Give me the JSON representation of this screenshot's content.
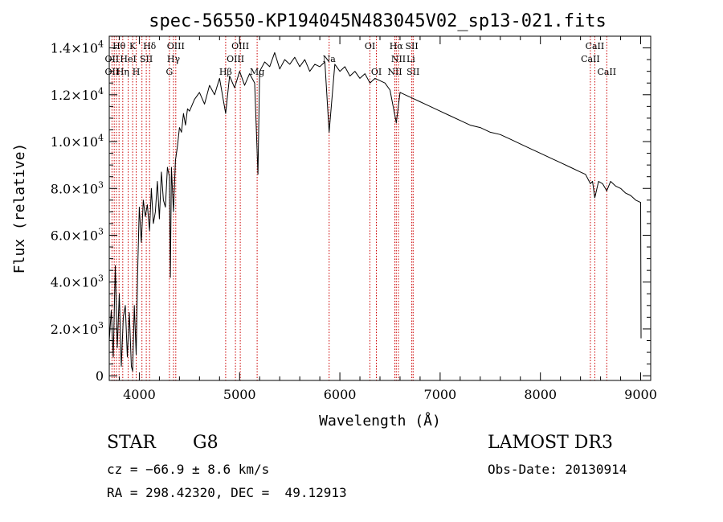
{
  "chart_data": {
    "type": "line",
    "title": "spec-56550-KP194045N483045V02_sp13-021.fits",
    "xlabel": "Wavelength (Å)",
    "ylabel": "Flux (relative)",
    "xlim": [
      3700,
      9100
    ],
    "ylim": [
      -200,
      14500
    ],
    "xticks": [
      4000,
      5000,
      6000,
      7000,
      8000,
      9000
    ],
    "xtick_labels": [
      "4000",
      "5000",
      "6000",
      "7000",
      "8000",
      "9000"
    ],
    "yticks": [
      0,
      2000,
      4000,
      6000,
      8000,
      10000,
      12000,
      14000
    ],
    "ytick_labels": [
      {
        "mant": "0",
        "exp": ""
      },
      {
        "mant": "2.0×10",
        "exp": "3"
      },
      {
        "mant": "4.0×10",
        "exp": "3"
      },
      {
        "mant": "6.0×10",
        "exp": "3"
      },
      {
        "mant": "8.0×10",
        "exp": "3"
      },
      {
        "mant": "1.0×10",
        "exp": "4"
      },
      {
        "mant": "1.2×10",
        "exp": "4"
      },
      {
        "mant": "1.4×10",
        "exp": "4"
      }
    ],
    "series": [
      {
        "name": "flux",
        "x": [
          3700,
          3720,
          3740,
          3760,
          3780,
          3800,
          3820,
          3840,
          3860,
          3880,
          3900,
          3920,
          3933,
          3950,
          3968,
          3985,
          4000,
          4020,
          4040,
          4060,
          4080,
          4102,
          4120,
          4140,
          4160,
          4180,
          4200,
          4220,
          4240,
          4260,
          4280,
          4300,
          4310,
          4320,
          4340,
          4360,
          4380,
          4400,
          4420,
          4440,
          4460,
          4480,
          4500,
          4550,
          4600,
          4650,
          4700,
          4750,
          4800,
          4861,
          4900,
          4950,
          5000,
          5050,
          5100,
          5150,
          5183,
          5200,
          5250,
          5300,
          5350,
          5400,
          5450,
          5500,
          5550,
          5600,
          5650,
          5700,
          5750,
          5800,
          5850,
          5893,
          5950,
          6000,
          6050,
          6100,
          6150,
          6200,
          6250,
          6300,
          6350,
          6400,
          6450,
          6500,
          6563,
          6600,
          6650,
          6700,
          6750,
          6800,
          6900,
          7000,
          7100,
          7200,
          7300,
          7400,
          7500,
          7600,
          7700,
          7800,
          7900,
          8000,
          8100,
          8200,
          8300,
          8400,
          8450,
          8498,
          8520,
          8542,
          8580,
          8620,
          8662,
          8700,
          8750,
          8800,
          8850,
          8900,
          8950,
          9000,
          9004
        ],
        "y": [
          1500,
          2800,
          800,
          4700,
          1200,
          3500,
          400,
          2500,
          3000,
          800,
          2700,
          400,
          200,
          3000,
          900,
          4800,
          7200,
          5700,
          7500,
          6800,
          7300,
          6200,
          8000,
          6500,
          7000,
          8300,
          6700,
          8700,
          7500,
          7200,
          8900,
          8500,
          4200,
          8900,
          7000,
          9200,
          9800,
          10600,
          10400,
          11200,
          10700,
          11400,
          11300,
          11800,
          12100,
          11600,
          12400,
          12000,
          12700,
          11200,
          12800,
          12300,
          13000,
          12400,
          12900,
          12500,
          8600,
          13000,
          13400,
          13200,
          13800,
          13100,
          13500,
          13300,
          13600,
          13200,
          13500,
          13000,
          13300,
          13200,
          13400,
          10400,
          13300,
          13000,
          13200,
          12800,
          13000,
          12700,
          12900,
          12500,
          12700,
          12600,
          12500,
          12200,
          10800,
          12100,
          12000,
          11900,
          11800,
          11700,
          11500,
          11300,
          11100,
          10900,
          10700,
          10600,
          10400,
          10300,
          10100,
          9900,
          9700,
          9500,
          9300,
          9100,
          8900,
          8700,
          8600,
          8200,
          8300,
          7600,
          8300,
          8200,
          7900,
          8300,
          8100,
          8000,
          7800,
          7700,
          7500,
          7400,
          1600
        ]
      }
    ],
    "line_wavelengths": [
      3727,
      3750,
      3771,
      3798,
      3835,
      3889,
      3933,
      3968,
      4026,
      4069,
      4102,
      4300,
      4341,
      4363,
      4861,
      4959,
      5007,
      5175,
      5893,
      6300,
      6364,
      6548,
      6563,
      6584,
      6717,
      6731,
      8498,
      8542,
      8662
    ],
    "line_labels": [
      {
        "text": "Hθ",
        "x": 3798,
        "row": 0
      },
      {
        "text": "K",
        "x": 3933,
        "row": 0
      },
      {
        "text": "Hδ",
        "x": 4102,
        "row": 0
      },
      {
        "text": "OIII",
        "x": 4363,
        "row": 0
      },
      {
        "text": "OIII",
        "x": 5007,
        "row": 0
      },
      {
        "text": "OI",
        "x": 6300,
        "row": 0
      },
      {
        "text": "Hα",
        "x": 6563,
        "row": 0
      },
      {
        "text": "SII",
        "x": 6717,
        "row": 0
      },
      {
        "text": "CaII",
        "x": 8542,
        "row": 0
      },
      {
        "text": "OII",
        "x": 3727,
        "row": 1
      },
      {
        "text": "HeI",
        "x": 3889,
        "row": 1
      },
      {
        "text": "SII",
        "x": 4069,
        "row": 1
      },
      {
        "text": "Hγ",
        "x": 4341,
        "row": 1
      },
      {
        "text": "OIII",
        "x": 4959,
        "row": 1
      },
      {
        "text": "Na",
        "x": 5893,
        "row": 1
      },
      {
        "text": "NII",
        "x": 6584,
        "row": 1
      },
      {
        "text": "Li",
        "x": 6708,
        "row": 1
      },
      {
        "text": "CaII",
        "x": 8498,
        "row": 1
      },
      {
        "text": "OII",
        "x": 3727,
        "row": 2
      },
      {
        "text": "Hη",
        "x": 3835,
        "row": 2
      },
      {
        "text": "H",
        "x": 3968,
        "row": 2
      },
      {
        "text": "G",
        "x": 4300,
        "row": 2
      },
      {
        "text": "Hβ",
        "x": 4861,
        "row": 2
      },
      {
        "text": "Mg",
        "x": 5175,
        "row": 2
      },
      {
        "text": "OI",
        "x": 6364,
        "row": 2
      },
      {
        "text": "NII",
        "x": 6548,
        "row": 2
      },
      {
        "text": "SII",
        "x": 6731,
        "row": 2
      },
      {
        "text": "CaII",
        "x": 8662,
        "row": 2
      }
    ]
  },
  "info": {
    "class_label": "STAR",
    "subclass": "G8",
    "survey": "LAMOST DR3",
    "cz": "cz = −66.9 ± 8.6 km/s",
    "obs_date": "Obs-Date: 20130914",
    "coords": "RA = 298.42320, DEC =  49.12913"
  },
  "colors": {
    "line_marker": "#cc0000",
    "spectrum": "#000000",
    "frame": "#000000"
  }
}
